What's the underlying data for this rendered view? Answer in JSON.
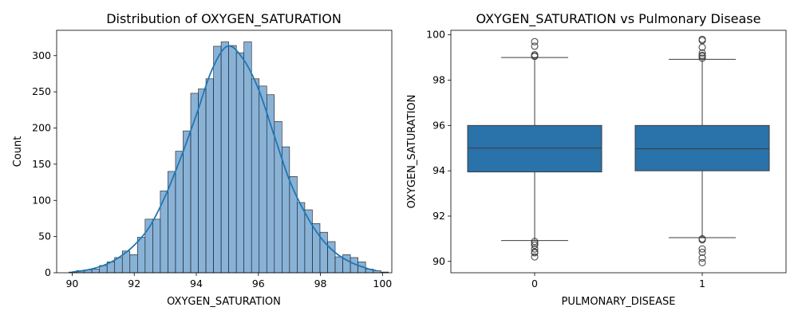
{
  "chart_data": [
    {
      "type": "histogram",
      "title": "Distribution of OXYGEN_SATURATION",
      "xlabel": "OXYGEN_SATURATION",
      "ylabel": "Count",
      "xlim": [
        89.5,
        100.3
      ],
      "ylim": [
        0,
        335
      ],
      "xticks": [
        90,
        92,
        94,
        96,
        98,
        100
      ],
      "yticks": [
        0,
        50,
        100,
        150,
        200,
        250,
        300
      ],
      "bin_start": 89.9,
      "bin_width": 0.245,
      "counts": [
        1,
        3,
        4,
        5,
        10,
        15,
        21,
        30,
        25,
        49,
        74,
        74,
        113,
        140,
        168,
        196,
        248,
        254,
        268,
        313,
        319,
        314,
        304,
        319,
        268,
        258,
        246,
        209,
        174,
        133,
        97,
        87,
        68,
        56,
        43,
        22,
        25,
        21,
        15,
        5,
        3,
        1
      ],
      "kde": {
        "x": [
          90.0,
          90.5,
          91.0,
          91.5,
          92.0,
          92.5,
          93.0,
          93.5,
          94.0,
          94.5,
          95.0,
          95.5,
          96.0,
          96.5,
          97.0,
          97.5,
          98.0,
          98.5,
          99.0,
          99.5,
          99.8
        ],
        "y": [
          1,
          4,
          10,
          21,
          38,
          64,
          106,
          159,
          218,
          280,
          313,
          296,
          254,
          191,
          128,
          83,
          49,
          27,
          14,
          6,
          3
        ]
      },
      "bar_color": "#6c9fcd",
      "line_color": "#1f77b4"
    },
    {
      "type": "box",
      "title": "OXYGEN_SATURATION vs Pulmonary Disease",
      "xlabel": "PULMONARY_DISEASE",
      "ylabel": "OXYGEN_SATURATION",
      "categories": [
        "0",
        "1"
      ],
      "ylim": [
        89.5,
        100.2
      ],
      "yticks": [
        90,
        92,
        94,
        96,
        98,
        100
      ],
      "boxes": [
        {
          "category": "0",
          "q1": 93.95,
          "median": 95.0,
          "q3": 96.0,
          "whisker_low": 90.92,
          "whisker_high": 99.0,
          "outliers": [
            99.7,
            99.5,
            99.12,
            99.07,
            99.05,
            90.88,
            90.8,
            90.72,
            90.55,
            90.42,
            90.38,
            90.2
          ]
        },
        {
          "category": "1",
          "q1": 94.0,
          "median": 94.97,
          "q3": 96.0,
          "whisker_low": 91.05,
          "whisker_high": 98.92,
          "outliers": [
            99.8,
            99.75,
            99.45,
            99.2,
            99.1,
            99.05,
            98.97,
            91.0,
            90.95,
            90.55,
            90.4,
            90.15,
            89.95
          ]
        }
      ],
      "box_color": "#2a72aa"
    }
  ]
}
